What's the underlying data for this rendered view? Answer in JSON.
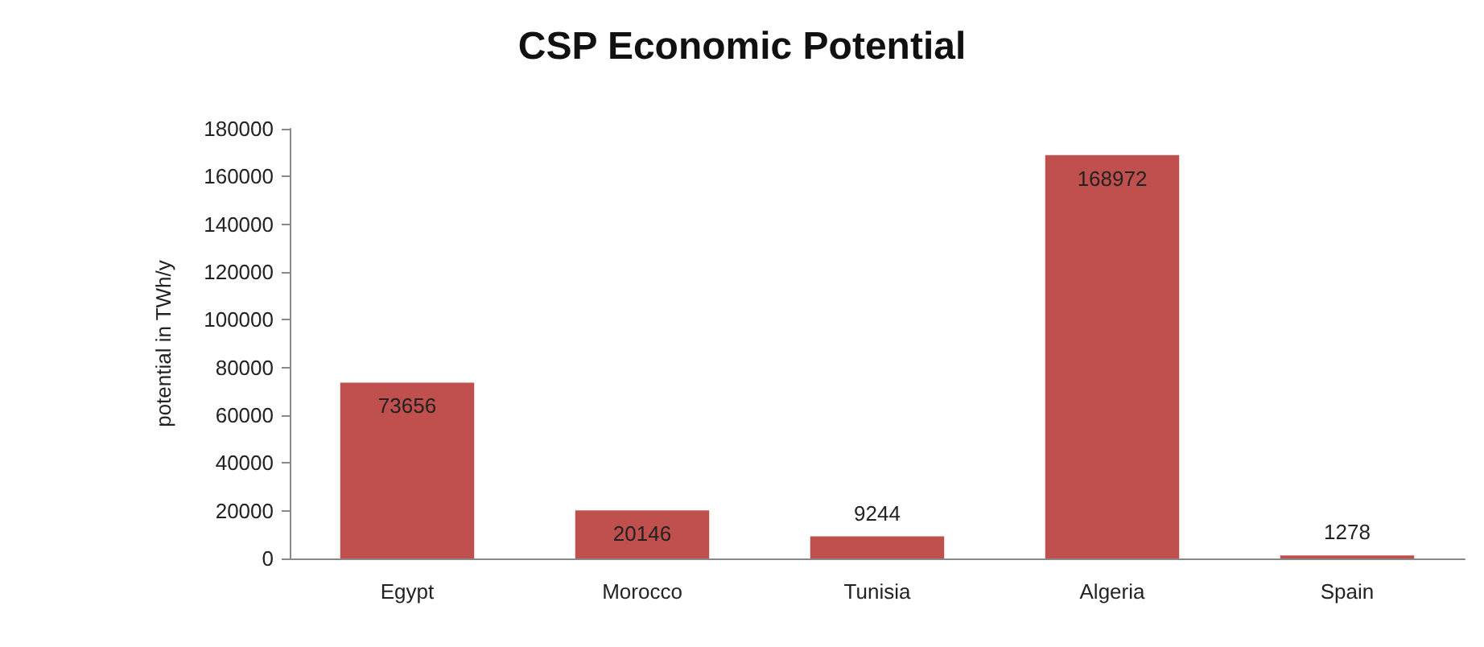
{
  "chart_data": {
    "type": "bar",
    "title": "CSP Economic Potential",
    "ylabel": "potential in TWh/y",
    "categories": [
      "Egypt",
      "Morocco",
      "Tunisia",
      "Algeria",
      "Spain"
    ],
    "values": [
      73656,
      20146,
      9244,
      168972,
      1278
    ],
    "color": "#c0504d",
    "ylim": [
      0,
      180000
    ],
    "yticks": [
      0,
      20000,
      40000,
      60000,
      80000,
      100000,
      120000,
      140000,
      160000,
      180000
    ],
    "grid": false,
    "data_labels": true
  }
}
